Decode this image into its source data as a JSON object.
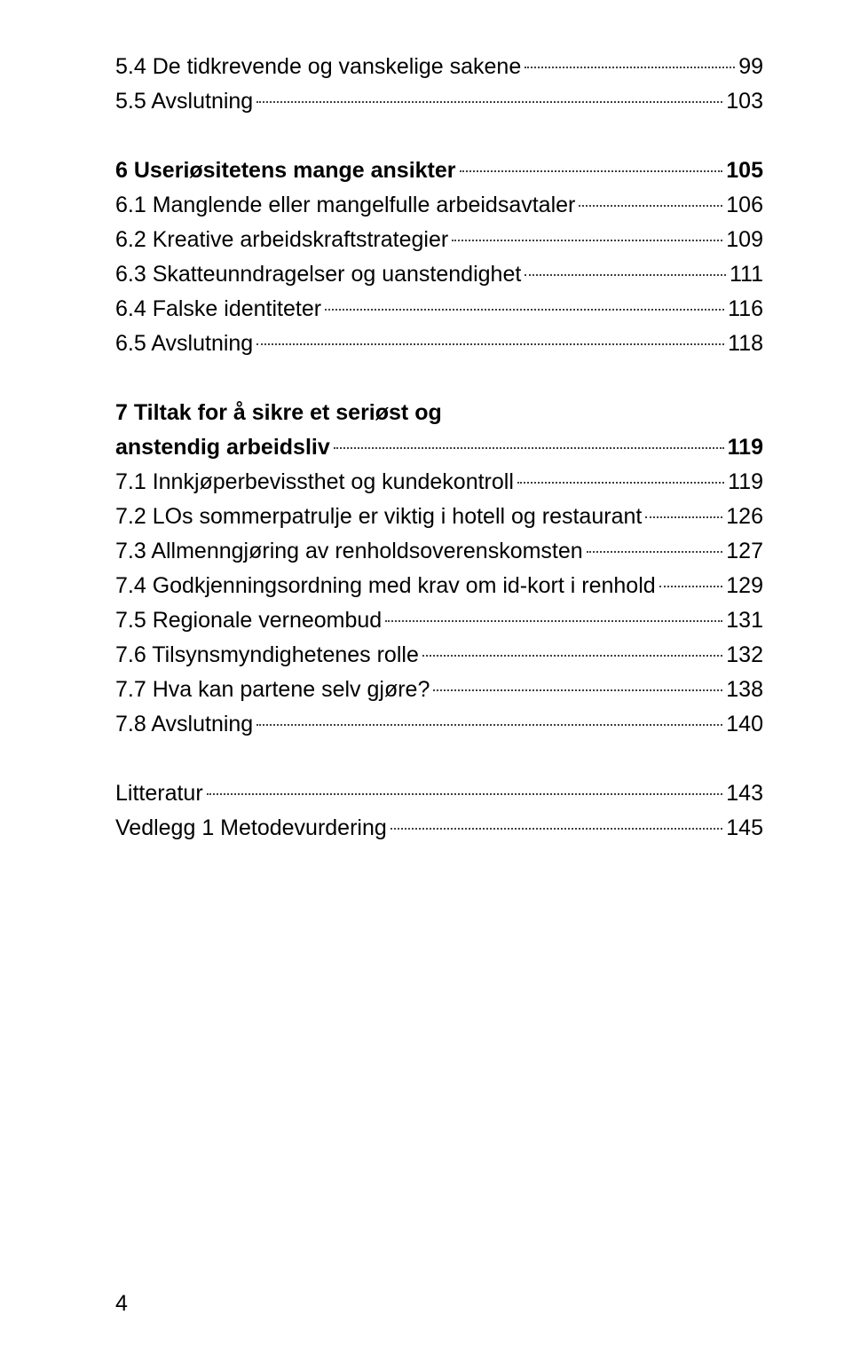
{
  "toc": [
    {
      "label": "5.4 De tidkrevende og vanskelige sakene",
      "page": "99",
      "bold": false
    },
    {
      "label": "5.5 Avslutning",
      "page": "103",
      "bold": false
    },
    {
      "spacer": true
    },
    {
      "label": "6 Useriøsitetens mange ansikter",
      "page": "105",
      "bold": true
    },
    {
      "label": "6.1 Manglende eller mangelfulle arbeidsavtaler",
      "page": "106",
      "bold": false
    },
    {
      "label": "6.2 Kreative arbeidskraftstrategier",
      "page": "109",
      "bold": false
    },
    {
      "label": "6.3 Skatteunndragelser og uanstendighet",
      "page": "111",
      "bold": false
    },
    {
      "label": "6.4 Falske identiteter",
      "page": "116",
      "bold": false
    },
    {
      "label": "6.5 Avslutning",
      "page": "118",
      "bold": false
    },
    {
      "spacer": true
    },
    {
      "labelLine1": "7 Tiltak for å sikre et seriøst og",
      "label": "anstendig arbeidsliv",
      "page": "119",
      "bold": true,
      "multiline": true
    },
    {
      "label": "7.1 Innkjøperbevissthet og kundekontroll",
      "page": "119",
      "bold": false
    },
    {
      "label": "7.2 LOs sommerpatrulje er viktig i hotell og restaurant",
      "page": "126",
      "bold": false
    },
    {
      "label": "7.3 Allmenngjøring av renholdsoverenskomsten",
      "page": "127",
      "bold": false
    },
    {
      "label": "7.4 Godkjenningsordning med krav om id-kort i renhold",
      "page": "129",
      "bold": false
    },
    {
      "label": "7.5 Regionale verneombud",
      "page": "131",
      "bold": false
    },
    {
      "label": "7.6 Tilsynsmyndighetenes rolle",
      "page": "132",
      "bold": false
    },
    {
      "label": "7.7 Hva kan partene selv gjøre?",
      "page": "138",
      "bold": false
    },
    {
      "label": "7.8 Avslutning",
      "page": "140",
      "bold": false
    },
    {
      "spacer": true
    },
    {
      "label": "Litteratur",
      "page": "143",
      "bold": false
    },
    {
      "label": "Vedlegg 1 Metodevurdering",
      "page": "145",
      "bold": false
    }
  ],
  "footerPageNumber": "4"
}
